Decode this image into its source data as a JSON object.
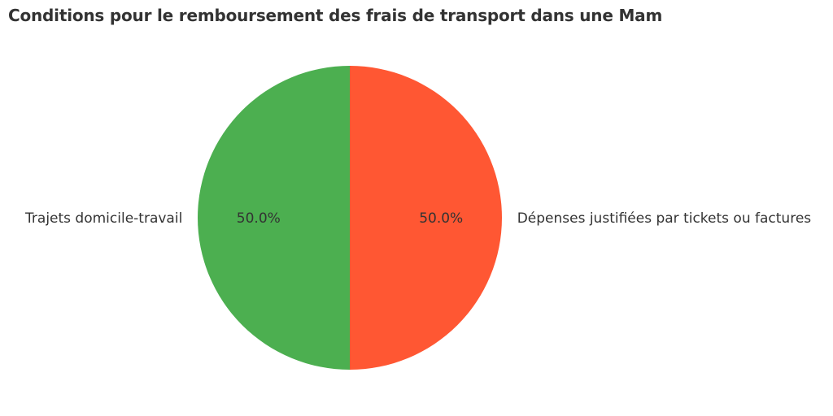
{
  "chart_data": {
    "type": "pie",
    "title": "Conditions pour le remboursement des frais de transport dans une Mam",
    "labels": [
      "Trajets domicile-travail",
      "Dépenses justifiées par tickets ou factures"
    ],
    "values": [
      50.0,
      50.0
    ],
    "pct_labels": [
      "50.0%",
      "50.0%"
    ],
    "colors": [
      "#4CAF50",
      "#FF5733"
    ],
    "start_angle": 90,
    "counterclock": true,
    "label_distance": 1.1,
    "pct_distance": 0.6,
    "legend_position": "none",
    "background": "#ffffff",
    "text_color": "#333333"
  }
}
